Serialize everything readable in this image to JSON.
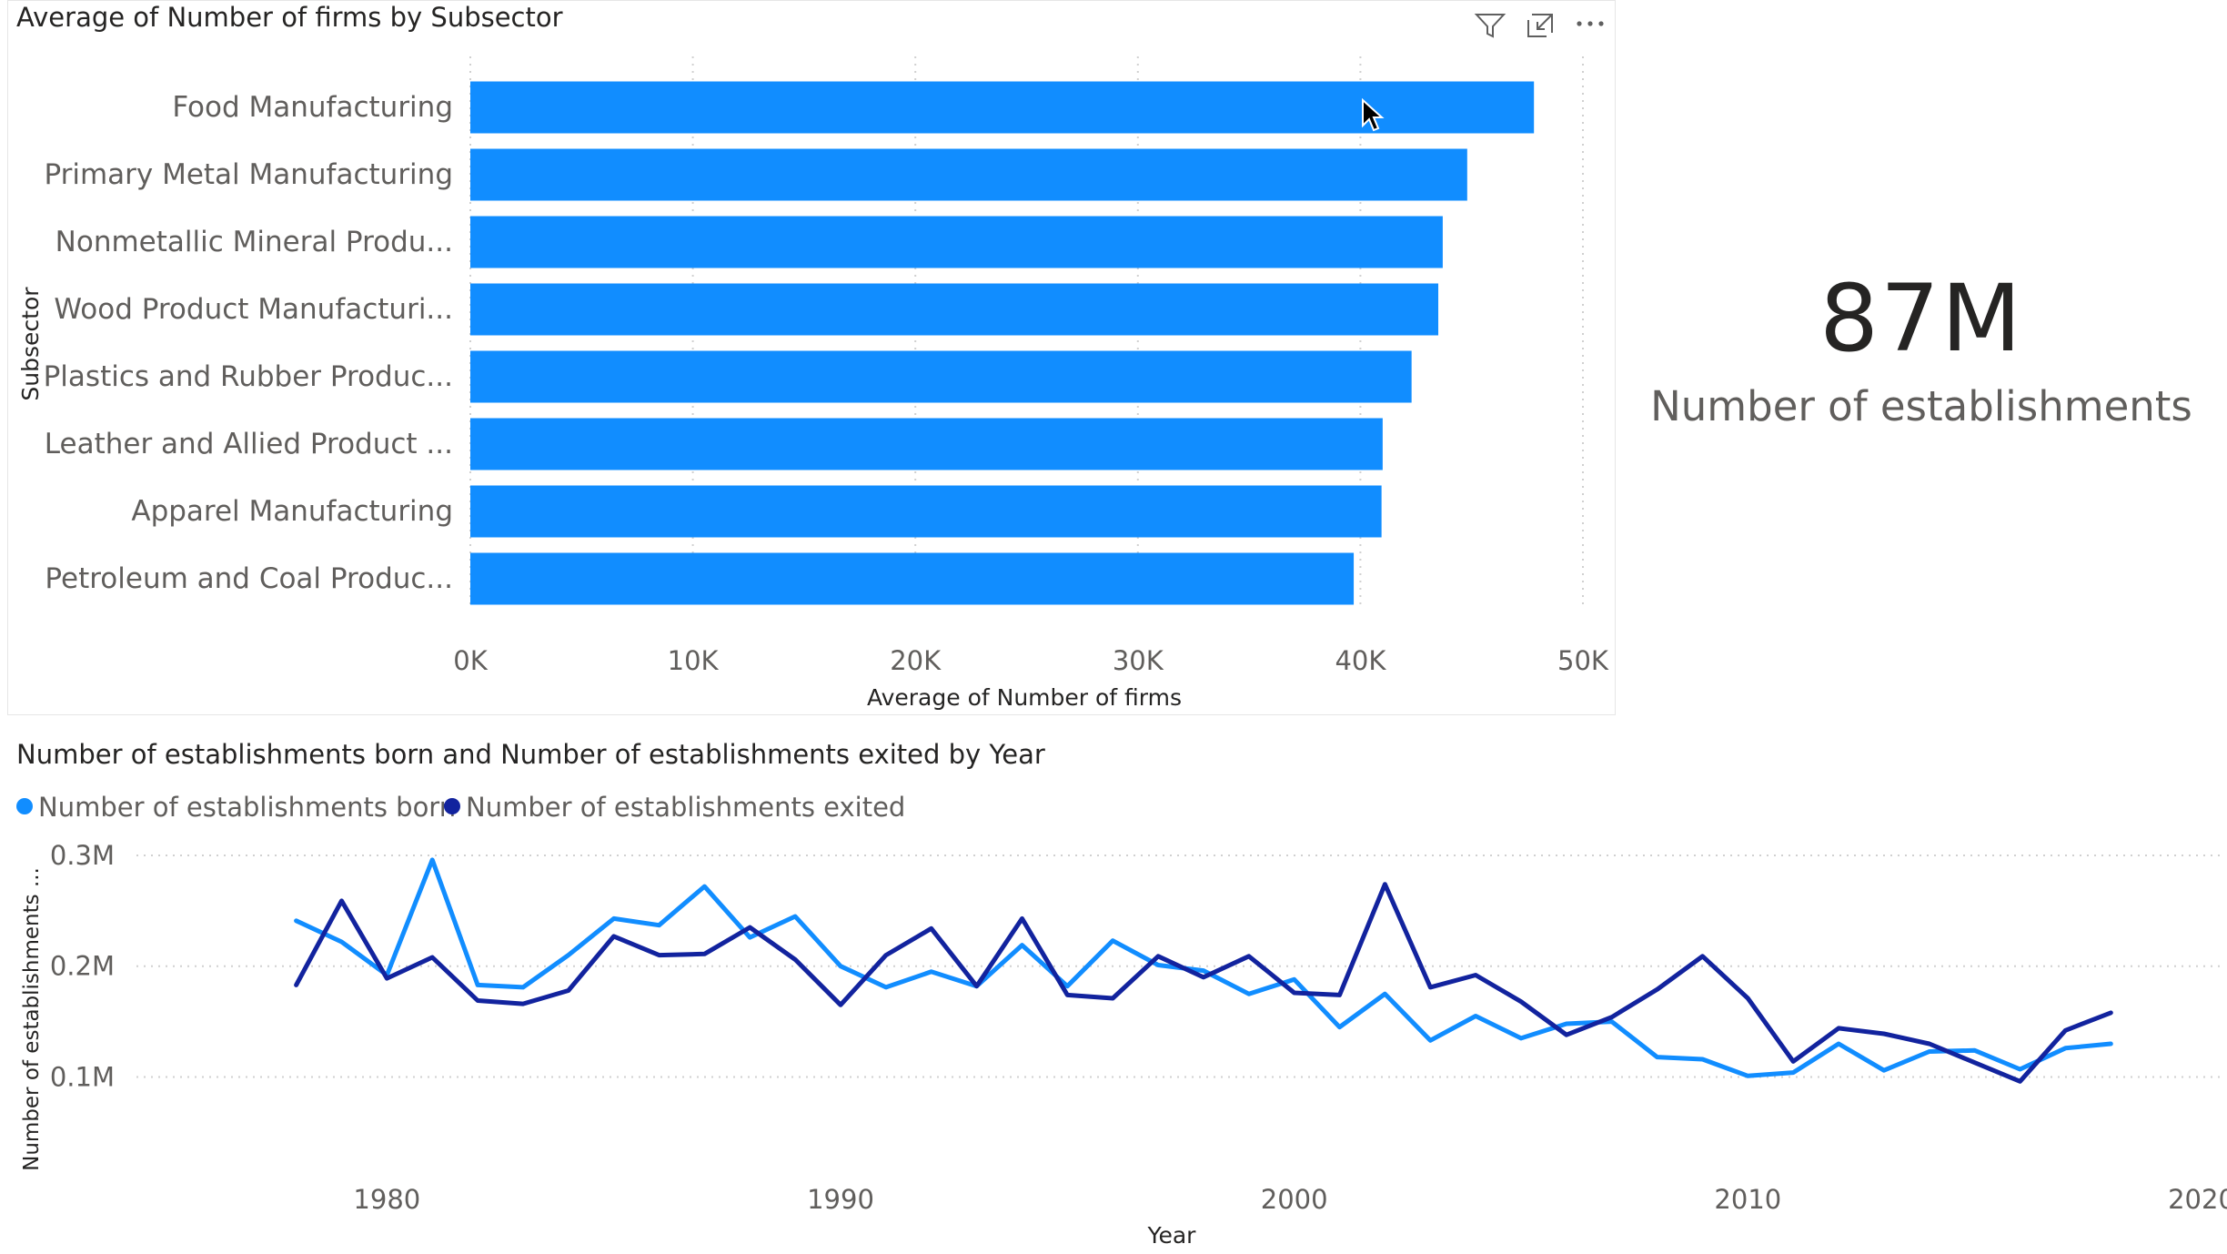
{
  "colors": {
    "bar": "#118DFF",
    "born": "#118DFF",
    "exited": "#12239E",
    "gridline": "#d0d0d0",
    "axis_text": "#605e5c"
  },
  "bar_visual": {
    "title": "Average of Number of firms by Subsector",
    "header_icons": [
      "filter-icon",
      "focus-mode-icon",
      "more-options-icon"
    ],
    "y_axis_title": "Subsector",
    "x_axis_title": "Average of Number of firms",
    "x_ticks": [
      "0K",
      "10K",
      "20K",
      "30K",
      "40K",
      "50K"
    ]
  },
  "card": {
    "value": "87M",
    "label": "Number of establishments"
  },
  "line_visual": {
    "title": "Number of establishments born and Number of establishments exited by Year",
    "legend": [
      "Number of establishments born",
      "Number of establishments exited"
    ],
    "y_axis_title": "Number of establishments ...",
    "y_ticks": [
      "0.3M",
      "0.2M",
      "0.1M"
    ],
    "x_axis_title": "Year",
    "x_ticks": [
      "1980",
      "1990",
      "2000",
      "2010",
      "2020"
    ]
  },
  "chart_data": [
    {
      "type": "bar",
      "orientation": "horizontal",
      "title": "Average of Number of firms by Subsector",
      "xlabel": "Average of Number of firms",
      "ylabel": "Subsector",
      "xlim": [
        0,
        50000
      ],
      "categories": [
        "Food Manufacturing",
        "Primary Metal Manufacturing",
        "Nonmetallic Mineral Produ...",
        "Wood Product Manufacturi...",
        "Plastics and Rubber Produc...",
        "Leather and Allied Product ...",
        "Apparel Manufacturing",
        "Petroleum and Coal Produc..."
      ],
      "values": [
        47800,
        44800,
        43700,
        43500,
        42300,
        41000,
        40950,
        39700
      ],
      "grid": true
    },
    {
      "type": "line",
      "title": "Number of establishments born and Number of establishments exited by Year",
      "xlabel": "Year",
      "ylabel": "Number of establishments ...",
      "xlim": [
        1975,
        2020
      ],
      "ylim": [
        0.07,
        0.3
      ],
      "y_unit": "M",
      "legend_position": "top-left",
      "grid": true,
      "x": [
        1978,
        1979,
        1980,
        1981,
        1982,
        1983,
        1984,
        1985,
        1986,
        1987,
        1988,
        1989,
        1990,
        1991,
        1992,
        1993,
        1994,
        1995,
        1996,
        1997,
        1998,
        1999,
        2000,
        2001,
        2002,
        2003,
        2004,
        2005,
        2006,
        2007,
        2008,
        2009,
        2010,
        2011,
        2012,
        2013,
        2014,
        2015,
        2016,
        2017,
        2018
      ],
      "series": [
        {
          "name": "Number of establishments born",
          "values": [
            0.241,
            0.222,
            0.192,
            0.296,
            0.183,
            0.181,
            0.21,
            0.243,
            0.237,
            0.272,
            0.226,
            0.245,
            0.2,
            0.181,
            0.195,
            0.182,
            0.219,
            0.182,
            0.223,
            0.201,
            0.196,
            0.175,
            0.188,
            0.145,
            0.175,
            0.133,
            0.155,
            0.135,
            0.148,
            0.15,
            0.118,
            0.116,
            0.101,
            0.104,
            0.13,
            0.106,
            0.123,
            0.124,
            0.107,
            0.126,
            0.13
          ]
        },
        {
          "name": "Number of establishments exited",
          "values": [
            0.183,
            0.259,
            0.189,
            0.208,
            0.169,
            0.166,
            0.178,
            0.227,
            0.21,
            0.211,
            0.235,
            0.206,
            0.165,
            0.21,
            0.234,
            0.182,
            0.243,
            0.174,
            0.171,
            0.209,
            0.19,
            0.209,
            0.176,
            0.174,
            0.274,
            0.181,
            0.192,
            0.168,
            0.138,
            0.154,
            0.179,
            0.209,
            0.171,
            0.114,
            0.144,
            0.139,
            0.13,
            0.113,
            0.096,
            0.142,
            0.158
          ]
        }
      ]
    }
  ]
}
